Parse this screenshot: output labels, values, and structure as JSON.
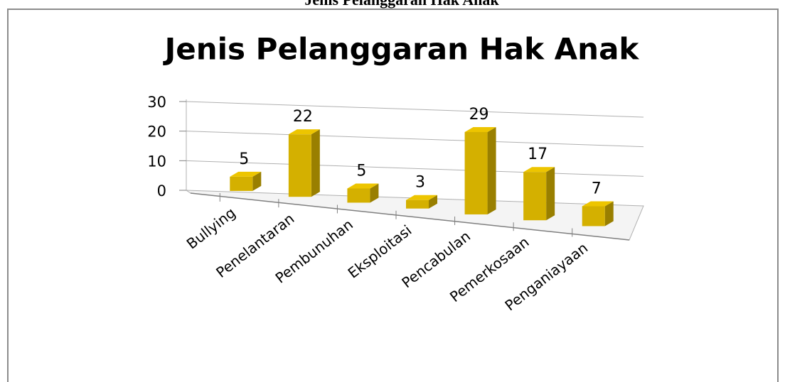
{
  "heading": "Jenis Pelanggaran Hak Anak",
  "chart_data": {
    "type": "bar",
    "title": "Jenis Pelanggaran Hak Anak",
    "categories": [
      "Bullying",
      "Penelantaran",
      "Pembunuhan",
      "Eksploitasi",
      "Pencabulan",
      "Pemerkosaan",
      "Penganiayaan"
    ],
    "values": [
      5,
      22,
      5,
      3,
      29,
      17,
      7
    ],
    "color": "#d4b000",
    "ylim": [
      0,
      30
    ],
    "yticks": [
      0,
      10,
      20,
      30
    ],
    "grid": true
  }
}
